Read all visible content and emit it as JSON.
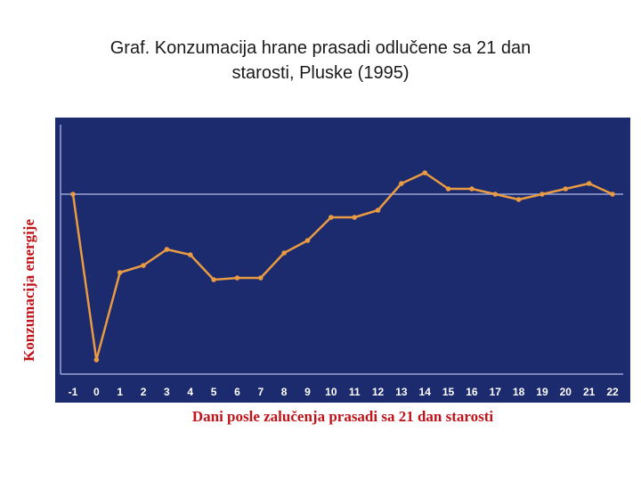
{
  "title_lines": [
    "Graf. Konzumacija hrane prasadi odlučene sa 21 dan",
    "starosti, Pluske (1995)"
  ],
  "colors": {
    "plot_background": "#1c2a6e",
    "axis_line": "#9aa3d6",
    "series_line": "#e89b43",
    "tick_text": "#ffffff",
    "axis_title": "#c0141a"
  },
  "chart_data": {
    "type": "line",
    "title": "Graf. Konzumacija hrane prasadi odlučene sa 21 dan starosti, Pluske (1995)",
    "xlabel": "Dani posle zalučenja prasadi sa 21 dan starosti",
    "ylabel": "Konzumacija energije",
    "x": [
      -1,
      0,
      1,
      2,
      3,
      4,
      5,
      6,
      7,
      8,
      9,
      10,
      11,
      12,
      13,
      14,
      15,
      16,
      17,
      18,
      19,
      20,
      21,
      22
    ],
    "series": [
      {
        "values": [
          100,
          7,
          56,
          60,
          69,
          66,
          52,
          53,
          53,
          67,
          74,
          87,
          87,
          91,
          106,
          112,
          103,
          103,
          100,
          97,
          100,
          103,
          106,
          100
        ]
      }
    ],
    "reference_line": 100,
    "ylim": [
      0,
      135
    ],
    "y_tick_labels_shown": false,
    "grid": false,
    "legend": "none"
  }
}
